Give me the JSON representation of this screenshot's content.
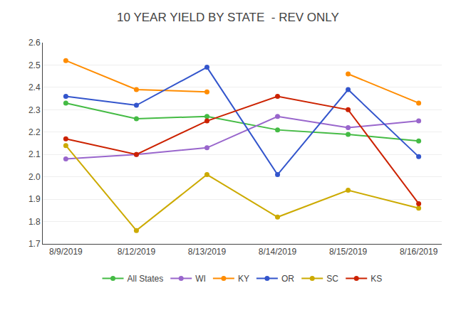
{
  "chart_data": {
    "type": "line",
    "title": "10 YEAR YIELD BY STATE  - REV ONLY",
    "categories": [
      "8/9/2019",
      "8/12/2019",
      "8/13/2019",
      "8/14/2019",
      "8/15/2019",
      "8/16/2019"
    ],
    "series": [
      {
        "name": "All States",
        "color": "#44BB44",
        "marker": "circle",
        "values": [
          2.33,
          2.26,
          2.27,
          2.21,
          2.19,
          2.16
        ]
      },
      {
        "name": "WI",
        "color": "#9966CC",
        "marker": "circle",
        "values": [
          2.08,
          2.1,
          2.13,
          2.27,
          2.22,
          2.25
        ]
      },
      {
        "name": "KY",
        "color": "#FF8C00",
        "marker": "circle",
        "values": [
          2.52,
          2.39,
          2.38,
          null,
          2.46,
          2.33
        ]
      },
      {
        "name": "OR",
        "color": "#3355CC",
        "marker": "circle",
        "values": [
          2.36,
          2.32,
          2.49,
          2.01,
          2.39,
          2.09
        ]
      },
      {
        "name": "SC",
        "color": "#CCAA00",
        "marker": "circle",
        "values": [
          2.14,
          1.76,
          2.01,
          1.82,
          1.94,
          1.86
        ]
      },
      {
        "name": "KS",
        "color": "#CC2200",
        "marker": "circle",
        "values": [
          2.17,
          2.1,
          2.25,
          2.36,
          2.3,
          1.88
        ]
      }
    ],
    "ylim": [
      1.7,
      2.6
    ],
    "yticks": [
      1.7,
      1.8,
      1.9,
      {
        "value": 2.0,
        "label": "2.0"
      },
      2.1,
      2.2,
      2.3,
      2.4,
      2.5,
      2.6
    ],
    "grid": true,
    "legend": "bottom"
  }
}
